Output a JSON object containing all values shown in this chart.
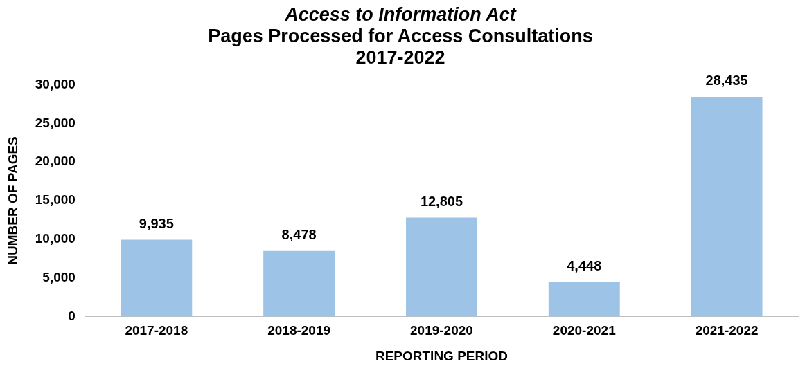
{
  "chart_data": {
    "type": "bar",
    "title": "Access to Information Act",
    "subtitle": "Pages Processed for Access Consultations\n2017-2022",
    "xlabel": "REPORTING PERIOD",
    "ylabel": "NUMBER OF PAGES",
    "categories": [
      "2017-2018",
      "2018-2019",
      "2019-2020",
      "2020-2021",
      "2021-2022"
    ],
    "values": [
      9935,
      8478,
      12805,
      4448,
      28435
    ],
    "color": "#9dc3e6",
    "value_labels": [
      "9,935",
      "8,478",
      "12,805",
      "4,448",
      "28,435"
    ],
    "ylim": [
      0,
      30000
    ],
    "yticks": [
      0,
      {
        "value": 5000,
        "label": "5,000"
      },
      {
        "value": 10000,
        "label": "10,000"
      },
      {
        "value": 15000,
        "label": "15,000"
      },
      {
        "value": 20000,
        "label": "20,000"
      },
      {
        "value": 25000,
        "label": "25,000"
      },
      {
        "value": 30000,
        "label": "30,000"
      }
    ],
    "grid": false,
    "legend": false
  }
}
